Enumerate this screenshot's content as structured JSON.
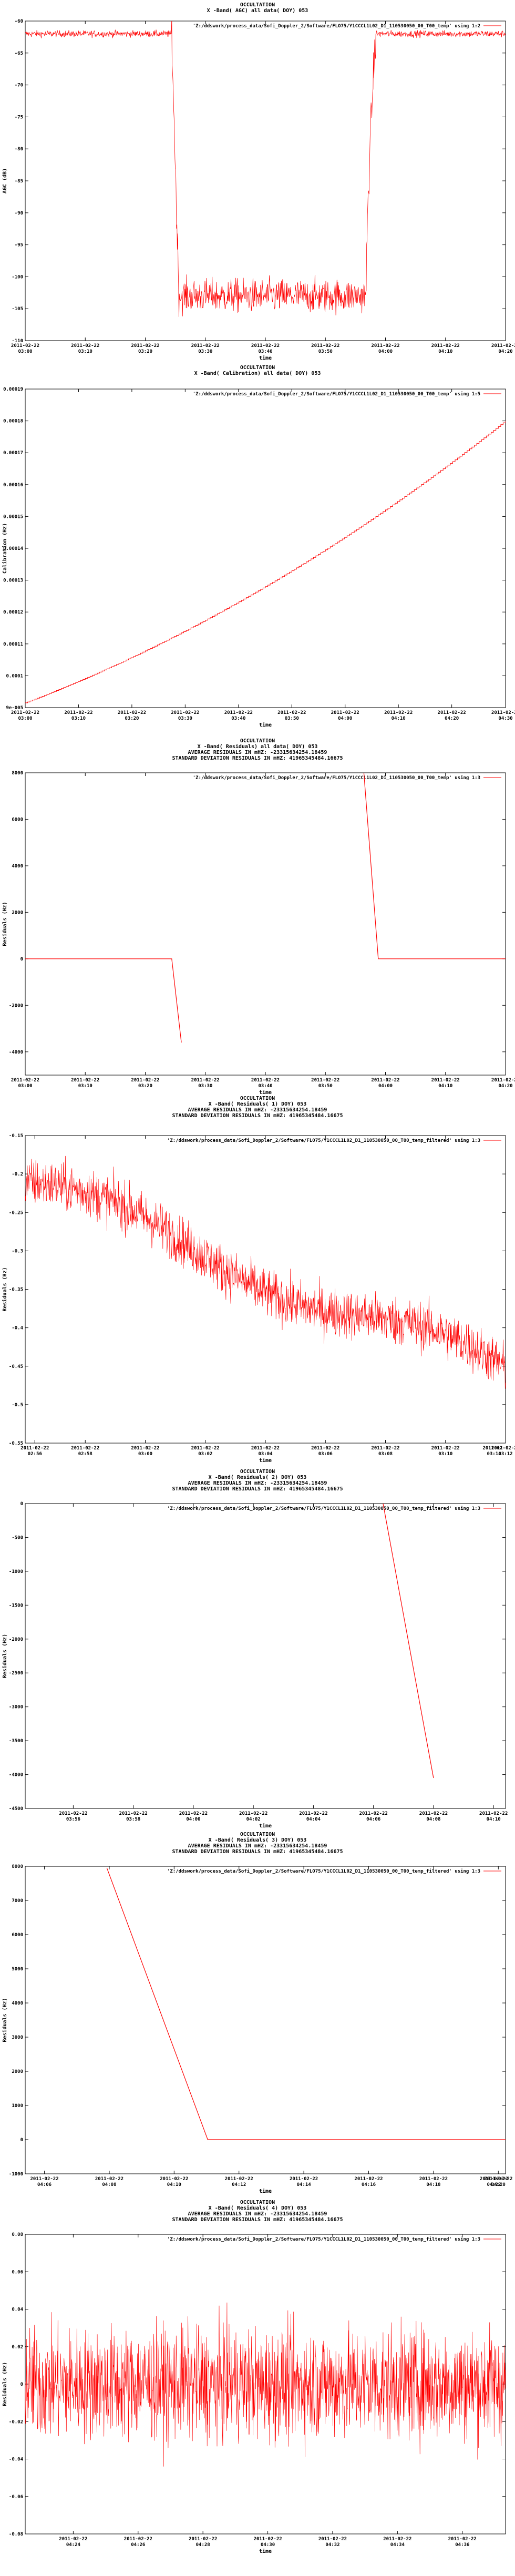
{
  "chart_data": [
    {
      "type": "line",
      "title_lines": [
        "OCCULTATION",
        "X -Band( AGC) all data( DOY) 053"
      ],
      "legend": "'Z:/ddswork/process_data/Sofi_Doppler_2/Software/FLO75/Y1CCCL1L02_D1_110530050_00_T00_temp' using 1:2",
      "xlabel": "time",
      "ylabel": "AGC (dB)",
      "ylim": [
        -110,
        -60
      ],
      "yticks": [
        {
          "v": -60,
          "label": "-60"
        },
        {
          "v": -65,
          "label": "-65"
        },
        {
          "v": -70,
          "label": "-70"
        },
        {
          "v": -75,
          "label": "-75"
        },
        {
          "v": -80,
          "label": "-80"
        },
        {
          "v": -85,
          "label": "-85"
        },
        {
          "v": -90,
          "label": "-90"
        },
        {
          "v": -95,
          "label": "-95"
        },
        {
          "v": -100,
          "label": "-100"
        },
        {
          "v": -105,
          "label": "-105"
        },
        {
          "v": -110,
          "label": "-110"
        }
      ],
      "xlim": [
        0,
        100
      ],
      "xticks": [
        {
          "v": 0,
          "l1": "2011-02-22",
          "l2": "03:00"
        },
        {
          "v": 12.5,
          "l1": "2011-02-22",
          "l2": "03:10"
        },
        {
          "v": 25,
          "l1": "2011-02-22",
          "l2": "03:20"
        },
        {
          "v": 37.5,
          "l1": "2011-02-22",
          "l2": "03:30"
        },
        {
          "v": 50,
          "l1": "2011-02-22",
          "l2": "03:40"
        },
        {
          "v": 62.5,
          "l1": "2011-02-22",
          "l2": "03:50"
        },
        {
          "v": 75,
          "l1": "2011-02-22",
          "l2": "04:00"
        },
        {
          "v": 87.5,
          "l1": "2011-02-22",
          "l2": "04:10"
        },
        {
          "v": 100,
          "l1": "2011-02-22",
          "l2": "04:20"
        }
      ],
      "series_shape": "agc",
      "series_params": {
        "high": -62,
        "low": -103,
        "drop_start": 30.5,
        "drop_end": 32,
        "rise_start": 71,
        "rise_end": 73,
        "noise_high": 0.5,
        "noise_low": 2.5
      }
    },
    {
      "type": "line",
      "title_lines": [
        "OCCULTATION",
        "X -Band( Calibration) all data( DOY) 053"
      ],
      "legend": "'Z:/ddswork/process_data/Sofi_Doppler_2/Software/FLO75/Y1CCCL1L02_D1_110530050_00_T00_temp' using 1:5",
      "xlabel": "time",
      "ylabel": "Calibration (Hz)",
      "ylim": [
        9e-05,
        0.00019
      ],
      "yticks": [
        {
          "v": 9e-05,
          "label": "9e-005"
        },
        {
          "v": 0.0001,
          "label": "0.0001"
        },
        {
          "v": 0.00011,
          "label": "0.00011"
        },
        {
          "v": 0.00012,
          "label": "0.00012"
        },
        {
          "v": 0.00013,
          "label": "0.00013"
        },
        {
          "v": 0.00014,
          "label": "0.00014"
        },
        {
          "v": 0.00015,
          "label": "0.00015"
        },
        {
          "v": 0.00016,
          "label": "0.00016"
        },
        {
          "v": 0.00017,
          "label": "0.00017"
        },
        {
          "v": 0.00018,
          "label": "0.00018"
        },
        {
          "v": 0.00019,
          "label": "0.00019"
        }
      ],
      "xlim": [
        0,
        100
      ],
      "xticks": [
        {
          "v": 0,
          "l1": "2011-02-22",
          "l2": "03:00"
        },
        {
          "v": 11.1,
          "l1": "2011-02-22",
          "l2": "03:10"
        },
        {
          "v": 22.2,
          "l1": "2011-02-22",
          "l2": "03:20"
        },
        {
          "v": 33.3,
          "l1": "2011-02-22",
          "l2": "03:30"
        },
        {
          "v": 44.4,
          "l1": "2011-02-22",
          "l2": "03:40"
        },
        {
          "v": 55.5,
          "l1": "2011-02-22",
          "l2": "03:50"
        },
        {
          "v": 66.6,
          "l1": "2011-02-22",
          "l2": "04:00"
        },
        {
          "v": 77.7,
          "l1": "2011-02-22",
          "l2": "04:10"
        },
        {
          "v": 88.8,
          "l1": "2011-02-22",
          "l2": "04:20"
        },
        {
          "v": 100,
          "l1": "2011-02-22",
          "l2": "04:30"
        }
      ],
      "series_shape": "curve",
      "series_params": {
        "y0": 9.15e-05,
        "y1": 0.00018
      }
    },
    {
      "type": "line",
      "title_lines": [
        "OCCULTATION",
        "X -Band( Residuals) all data( DOY) 053",
        "AVERAGE RESIDUALS IN mHZ: -23315634254.18459",
        "STANDARD DEVIATION RESIDUALS IN mHZ: 41965345484.16675"
      ],
      "legend": "'Z:/ddswork/process_data/Sofi_Doppler_2/Software/FLO75/Y1CCCL1L02_D1_110530050_00_T00_temp' using 1:3",
      "xlabel": "time",
      "ylabel": "Residuals (Hz)",
      "ylim": [
        -5000,
        8000
      ],
      "yticks": [
        {
          "v": -4000,
          "label": "-4000"
        },
        {
          "v": -2000,
          "label": "-2000"
        },
        {
          "v": 0,
          "label": "0"
        },
        {
          "v": 2000,
          "label": "2000"
        },
        {
          "v": 4000,
          "label": "4000"
        },
        {
          "v": 6000,
          "label": "6000"
        },
        {
          "v": 8000,
          "label": "8000"
        }
      ],
      "xlim": [
        0,
        100
      ],
      "xticks": [
        {
          "v": 0,
          "l1": "2011-02-22",
          "l2": "03:00"
        },
        {
          "v": 12.5,
          "l1": "2011-02-22",
          "l2": "03:10"
        },
        {
          "v": 25,
          "l1": "2011-02-22",
          "l2": "03:20"
        },
        {
          "v": 37.5,
          "l1": "2011-02-22",
          "l2": "03:30"
        },
        {
          "v": 50,
          "l1": "2011-02-22",
          "l2": "03:40"
        },
        {
          "v": 62.5,
          "l1": "2011-02-22",
          "l2": "03:50"
        },
        {
          "v": 75,
          "l1": "2011-02-22",
          "l2": "04:00"
        },
        {
          "v": 87.5,
          "l1": "2011-02-22",
          "l2": "04:10"
        },
        {
          "v": 100,
          "l1": "2011-02-22",
          "l2": "04:20"
        }
      ],
      "series_shape": "polyline",
      "series_segments": [
        [
          [
            0,
            0
          ],
          [
            30.5,
            0
          ],
          [
            32.5,
            -3600
          ]
        ],
        [
          [
            70.5,
            8000
          ],
          [
            73.5,
            0
          ],
          [
            100,
            0
          ]
        ]
      ]
    },
    {
      "type": "line",
      "title_lines": [
        "OCCULTATION",
        "X -Band( Residuals( 1) DOY) 053",
        "AVERAGE RESIDUALS IN mHZ: -23315634254.18459",
        "STANDARD DEVIATION RESIDUALS IN mHZ: 41965345484.16675"
      ],
      "legend": "'Z:/ddswork/process_data/Sofi_Doppler_2/Software/FLO75/Y1CCCL1L02_D1_110530050_00_T00_temp_filtered' using 1:3",
      "xlabel": "time",
      "ylabel": "Residuals (Hz)",
      "ylim": [
        -0.55,
        -0.15
      ],
      "yticks": [
        {
          "v": -0.15,
          "label": "-0.15"
        },
        {
          "v": -0.2,
          "label": "-0.2"
        },
        {
          "v": -0.25,
          "label": "-0.25"
        },
        {
          "v": -0.3,
          "label": "-0.3"
        },
        {
          "v": -0.35,
          "label": "-0.35"
        },
        {
          "v": -0.4,
          "label": "-0.4"
        },
        {
          "v": -0.45,
          "label": "-0.45"
        },
        {
          "v": -0.5,
          "label": "-0.5"
        },
        {
          "v": -0.55,
          "label": "-0.55"
        }
      ],
      "xlim": [
        0,
        100
      ],
      "xticks": [
        {
          "v": 2,
          "l1": "2011-02-22",
          "l2": "02:56"
        },
        {
          "v": 12.5,
          "l1": "2011-02-22",
          "l2": "02:58"
        },
        {
          "v": 25,
          "l1": "2011-02-22",
          "l2": "03:00"
        },
        {
          "v": 37.5,
          "l1": "2011-02-22",
          "l2": "03:02"
        },
        {
          "v": 50,
          "l1": "2011-02-22",
          "l2": "03:04"
        },
        {
          "v": 62.5,
          "l1": "2011-02-22",
          "l2": "03:06"
        },
        {
          "v": 75,
          "l1": "2011-02-22",
          "l2": "03:08"
        },
        {
          "v": 87.5,
          "l1": "2011-02-22",
          "l2": "03:10"
        },
        {
          "v": 100,
          "l1": "2011-02-22",
          "l2": "03:12"
        }
      ],
      "extra_xtick": {
        "l1": "2011-02-",
        "l2": "03:14"
      },
      "series_shape": "noise",
      "series_params": {
        "start": -0.21,
        "end": -0.46,
        "amp": 0.03,
        "n": 1400
      }
    },
    {
      "type": "line",
      "title_lines": [
        "OCCULTATION",
        "X -Band( Residuals( 2) DOY) 053",
        "AVERAGE RESIDUALS IN mHZ: -23315634254.18459",
        "STANDARD DEVIATION RESIDUALS IN mHZ: 41965345484.16675"
      ],
      "legend": "'Z:/ddswork/process_data/Sofi_Doppler_2/Software/FLO75/Y1CCCL1L02_D1_110530050_00_T00_temp_filtered' using 1:3",
      "xlabel": "time",
      "ylabel": "Residuals (Hz)",
      "ylim": [
        -4500,
        0
      ],
      "yticks": [
        {
          "v": 0,
          "label": "0"
        },
        {
          "v": -500,
          "label": "-500"
        },
        {
          "v": -1000,
          "label": "-1000"
        },
        {
          "v": -1500,
          "label": "-1500"
        },
        {
          "v": -2000,
          "label": "-2000"
        },
        {
          "v": -2500,
          "label": "-2500"
        },
        {
          "v": -3000,
          "label": "-3000"
        },
        {
          "v": -3500,
          "label": "-3500"
        },
        {
          "v": -4000,
          "label": "-4000"
        },
        {
          "v": -4500,
          "label": "-4500"
        }
      ],
      "xlim": [
        0,
        100
      ],
      "xticks": [
        {
          "v": 10,
          "l1": "2011-02-22",
          "l2": "03:56"
        },
        {
          "v": 22.5,
          "l1": "2011-02-22",
          "l2": "03:58"
        },
        {
          "v": 35,
          "l1": "2011-02-22",
          "l2": "04:00"
        },
        {
          "v": 47.5,
          "l1": "2011-02-22",
          "l2": "04:02"
        },
        {
          "v": 60,
          "l1": "2011-02-22",
          "l2": "04:04"
        },
        {
          "v": 72.5,
          "l1": "2011-02-22",
          "l2": "04:06"
        },
        {
          "v": 85,
          "l1": "2011-02-22",
          "l2": "04:08"
        },
        {
          "v": 97.5,
          "l1": "2011-02-22",
          "l2": "04:10"
        }
      ],
      "series_shape": "polyline",
      "series_segments": [
        [
          [
            74.5,
            0
          ],
          [
            85,
            -4050
          ]
        ]
      ]
    },
    {
      "type": "line",
      "title_lines": [
        "OCCULTATION",
        "X -Band( Residuals( 3) DOY) 053",
        "AVERAGE RESIDUALS IN mHZ: -23315634254.18459",
        "STANDARD DEVIATION RESIDUALS IN mHZ: 41965345484.16675"
      ],
      "legend": "'Z:/ddswork/process_data/Sofi_Doppler_2/Software/FLO75/Y1CCCL1L02_D1_110530050_00_T00_temp_filtered' using 1:3",
      "xlabel": "time",
      "ylabel": "Residuals (Hz)",
      "ylim": [
        -1000,
        8000
      ],
      "yticks": [
        {
          "v": -1000,
          "label": "-1000"
        },
        {
          "v": 0,
          "label": "0"
        },
        {
          "v": 1000,
          "label": "1000"
        },
        {
          "v": 2000,
          "label": "2000"
        },
        {
          "v": 3000,
          "label": "3000"
        },
        {
          "v": 4000,
          "label": "4000"
        },
        {
          "v": 5000,
          "label": "5000"
        },
        {
          "v": 6000,
          "label": "6000"
        },
        {
          "v": 7000,
          "label": "7000"
        },
        {
          "v": 8000,
          "label": "8000"
        }
      ],
      "xlim": [
        0,
        100
      ],
      "xticks": [
        {
          "v": 4,
          "l1": "2011-02-22",
          "l2": "04:06"
        },
        {
          "v": 17.5,
          "l1": "2011-02-22",
          "l2": "04:08"
        },
        {
          "v": 31,
          "l1": "2011-02-22",
          "l2": "04:10"
        },
        {
          "v": 44.5,
          "l1": "2011-02-22",
          "l2": "04:12"
        },
        {
          "v": 58,
          "l1": "2011-02-22",
          "l2": "04:14"
        },
        {
          "v": 71.5,
          "l1": "2011-02-22",
          "l2": "04:16"
        },
        {
          "v": 85,
          "l1": "2011-02-22",
          "l2": "04:18"
        },
        {
          "v": 98.5,
          "l1": "2011-02-22",
          "l2": "04:20"
        }
      ],
      "extra_xtick": {
        "l1": "2011-02-22",
        "l2": "04:22"
      },
      "series_shape": "polyline",
      "series_segments": [
        [
          [
            17,
            7950
          ],
          [
            38,
            0
          ],
          [
            100,
            0
          ]
        ]
      ]
    },
    {
      "type": "line",
      "title_lines": [
        "OCCULTATION",
        "X -Band( Residuals( 4) DOY) 053",
        "AVERAGE RESIDUALS IN mHZ: -23315634254.18459",
        "STANDARD DEVIATION RESIDUALS IN mHZ: 41965345484.16675"
      ],
      "legend": "'Z:/ddswork/process_data/Sofi_Doppler_2/Software/FLO75/Y1CCCL1L02_D1_110530050_00_T00_temp_filtered' using 1:3",
      "xlabel": "time",
      "ylabel": "Residuals (Hz)",
      "ylim": [
        -0.08,
        0.08
      ],
      "yticks": [
        {
          "v": 0.08,
          "label": "0.08"
        },
        {
          "v": 0.06,
          "label": "0.06"
        },
        {
          "v": 0.04,
          "label": "0.04"
        },
        {
          "v": 0.02,
          "label": "0.02"
        },
        {
          "v": 0,
          "label": "0"
        },
        {
          "v": -0.02,
          "label": "-0.02"
        },
        {
          "v": -0.04,
          "label": "-0.04"
        },
        {
          "v": -0.06,
          "label": "-0.06"
        },
        {
          "v": -0.08,
          "label": "-0.08"
        }
      ],
      "xlim": [
        0,
        100
      ],
      "xticks": [
        {
          "v": 10,
          "l1": "2011-02-22",
          "l2": "04:24"
        },
        {
          "v": 23.5,
          "l1": "2011-02-22",
          "l2": "04:26"
        },
        {
          "v": 37,
          "l1": "2011-02-22",
          "l2": "04:28"
        },
        {
          "v": 50.5,
          "l1": "2011-02-22",
          "l2": "04:30"
        },
        {
          "v": 64,
          "l1": "2011-02-22",
          "l2": "04:32"
        },
        {
          "v": 77.5,
          "l1": "2011-02-22",
          "l2": "04:34"
        },
        {
          "v": 91,
          "l1": "2011-02-22",
          "l2": "04:36"
        }
      ],
      "series_shape": "noise",
      "series_params": {
        "start": 0.0,
        "end": 0.0,
        "amp": 0.028,
        "n": 1600
      }
    }
  ],
  "colors": {
    "series": "#ff0000",
    "axis": "#000000",
    "background": "#ffffff"
  }
}
